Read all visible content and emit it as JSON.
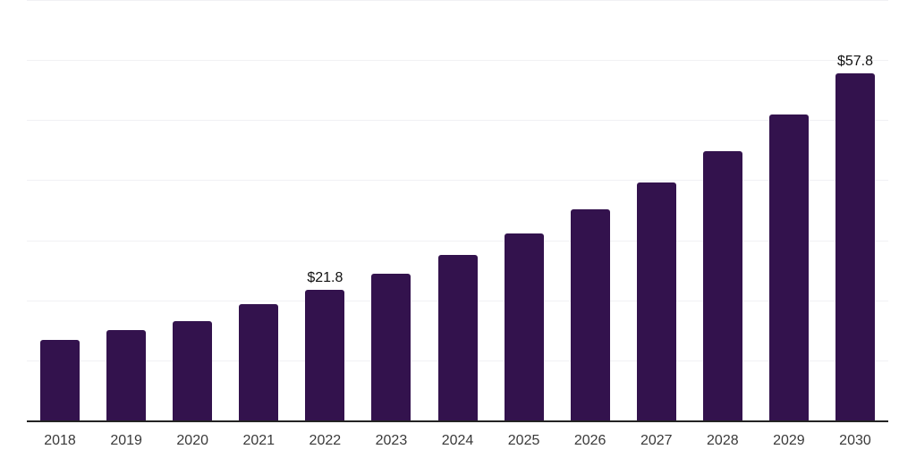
{
  "chart_data": {
    "type": "bar",
    "title": "",
    "xlabel": "",
    "ylabel": "",
    "categories": [
      "2018",
      "2019",
      "2020",
      "2021",
      "2022",
      "2023",
      "2024",
      "2025",
      "2026",
      "2027",
      "2028",
      "2029",
      "2030"
    ],
    "values": [
      13.4,
      15.0,
      16.6,
      19.4,
      21.8,
      24.4,
      27.6,
      31.1,
      35.1,
      39.6,
      44.9,
      50.9,
      57.8
    ],
    "annotations": [
      {
        "category": "2022",
        "text": "$21.8"
      },
      {
        "category": "2030",
        "text": "$57.8"
      }
    ],
    "ylim": [
      0,
      70
    ],
    "gridline_step": 10,
    "grid": true,
    "legend_position": "none",
    "colors": {
      "bar": "#33124d",
      "axis_line": "#232323",
      "gridline": "#f1f1f4",
      "tick_label": "#3a3a3a",
      "data_label": "#111111",
      "background": "#ffffff"
    }
  }
}
